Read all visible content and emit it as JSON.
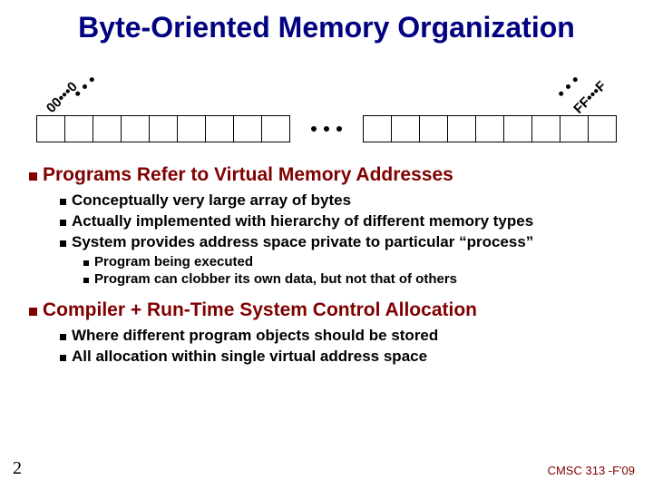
{
  "title": "Byte-Oriented Memory Organization",
  "diagram": {
    "leftLabel": "00•••0",
    "rightLabel": "FF•••F"
  },
  "sections": [
    {
      "heading": "Programs Refer to Virtual Memory Addresses",
      "items": [
        {
          "text": "Conceptually very large array of bytes"
        },
        {
          "text": "Actually implemented with hierarchy of different memory types"
        },
        {
          "text": "System provides address space private to particular “process”",
          "sub": [
            {
              "text": "Program being executed"
            },
            {
              "text": "Program can clobber its own data, but not that of others"
            }
          ]
        }
      ]
    },
    {
      "heading": "Compiler + Run-Time System Control Allocation",
      "items": [
        {
          "text": "Where different program objects should be stored"
        },
        {
          "text": "All allocation within single virtual address space"
        }
      ]
    }
  ],
  "pageNumber": "2",
  "footer": "CMSC 313 -F'09"
}
